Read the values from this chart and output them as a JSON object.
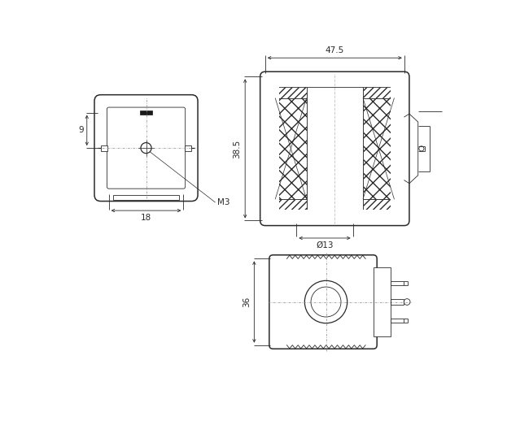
{
  "bg_color": "#ffffff",
  "line_color": "#2a2a2a",
  "dims": {
    "width_475": "47.5",
    "height_385": "38.5",
    "diam_13": "Ø13",
    "dim_18": "18",
    "dim_9": "9",
    "dim_36": "36",
    "label_m3": "M3"
  }
}
